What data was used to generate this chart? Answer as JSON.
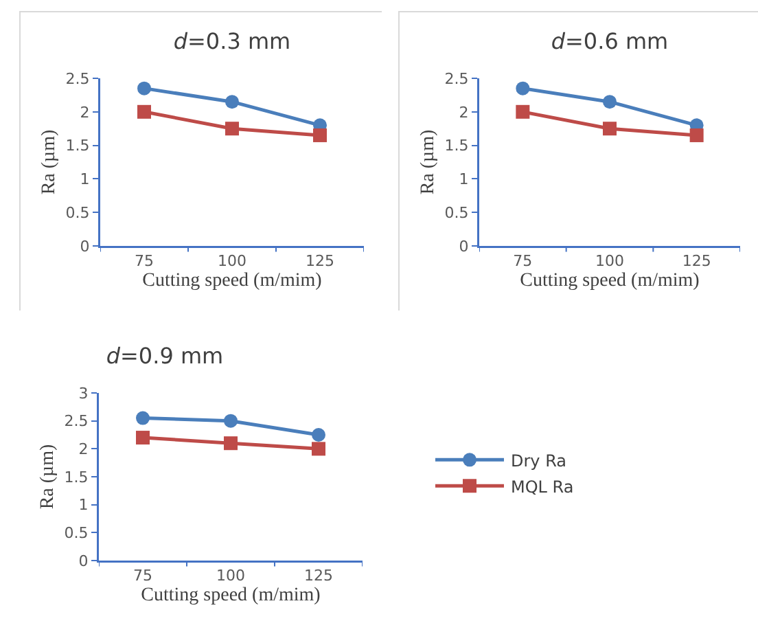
{
  "chart_data": [
    {
      "type": "line",
      "title": "d=0.3 mm",
      "xlabel": "Cutting speed (m/mim)",
      "ylabel": "Ra (µm)",
      "categories": [
        "75",
        "100",
        "125"
      ],
      "ylim": [
        0,
        2.5
      ],
      "yticks": [
        0,
        0.5,
        1,
        1.5,
        2,
        2.5
      ],
      "line_style": "solid",
      "legend": false,
      "series": [
        {
          "color": "#4a7ebb",
          "marker": "circle",
          "values": [
            2.35,
            2.15,
            1.8
          ]
        },
        {
          "color": "#be4b48",
          "marker": "square",
          "values": [
            2.0,
            1.75,
            1.65
          ]
        }
      ]
    },
    {
      "type": "line",
      "title": "d=0.6 mm",
      "xlabel": "Cutting speed (m/mim)",
      "ylabel": "Ra (µm)",
      "categories": [
        "75",
        "100",
        "125"
      ],
      "ylim": [
        0,
        2.5
      ],
      "yticks": [
        0,
        0.5,
        1,
        1.5,
        2,
        2.5
      ],
      "line_style": "solid",
      "legend": false,
      "series": [
        {
          "color": "#4a7ebb",
          "marker": "circle",
          "values": [
            2.35,
            2.15,
            1.8
          ]
        },
        {
          "color": "#be4b48",
          "marker": "square",
          "values": [
            2.0,
            1.75,
            1.65
          ]
        }
      ]
    },
    {
      "type": "line",
      "title": "d=0.9 mm",
      "xlabel": "Cutting speed (m/mim)",
      "ylabel": "Ra (µm)",
      "categories": [
        "75",
        "100",
        "125"
      ],
      "ylim": [
        0,
        3
      ],
      "yticks": [
        0,
        0.5,
        1,
        1.5,
        2,
        2.5,
        3
      ],
      "line_style": "solid",
      "legend": "right",
      "series": [
        {
          "name": "Dry Ra",
          "color": "#4a7ebb",
          "marker": "circle",
          "values": [
            2.55,
            2.5,
            2.25
          ]
        },
        {
          "name": "MQL Ra",
          "color": "#be4b48",
          "marker": "square",
          "values": [
            2.2,
            2.1,
            2.0
          ]
        }
      ]
    }
  ]
}
